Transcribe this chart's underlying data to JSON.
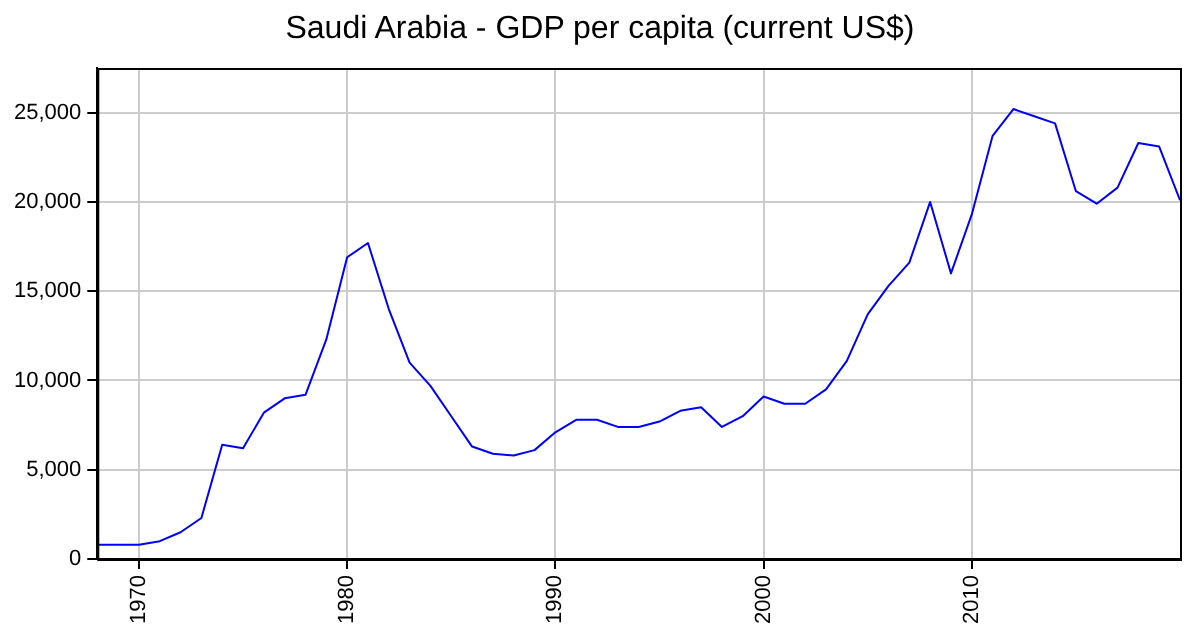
{
  "chart_data": {
    "type": "line",
    "title": "Saudi Arabia - GDP per capita (current US$)",
    "x": [
      1968,
      1969,
      1970,
      1971,
      1972,
      1973,
      1974,
      1975,
      1976,
      1977,
      1978,
      1979,
      1980,
      1981,
      1982,
      1983,
      1984,
      1985,
      1986,
      1987,
      1988,
      1989,
      1990,
      1991,
      1992,
      1993,
      1994,
      1995,
      1996,
      1997,
      1998,
      1999,
      2000,
      2001,
      2002,
      2003,
      2004,
      2005,
      2006,
      2007,
      2008,
      2009,
      2010,
      2011,
      2012,
      2013,
      2014,
      2015,
      2016,
      2017,
      2018,
      2019,
      2020
    ],
    "series": [
      {
        "color": "#0000ff",
        "values": [
          800,
          800,
          800,
          1000,
          1500,
          2300,
          6400,
          6200,
          8200,
          9000,
          9200,
          12300,
          16900,
          17700,
          14000,
          11000,
          9700,
          8000,
          6300,
          5900,
          5800,
          6100,
          7100,
          7800,
          7800,
          7400,
          7400,
          7700,
          8300,
          8500,
          7400,
          8000,
          9100,
          8700,
          8700,
          9500,
          11100,
          13700,
          15300,
          16600,
          20000,
          16000,
          19300,
          23700,
          25200,
          24800,
          24400,
          20600,
          19900,
          20800,
          23300,
          23100,
          20100
        ]
      }
    ],
    "xlim": [
      1968,
      2020
    ],
    "xticks": [
      1970,
      1980,
      1990,
      2000,
      2010
    ],
    "ylim": [
      0,
      27500
    ],
    "yticks": [
      0,
      {
        "value": 5000,
        "label": "5,000"
      },
      {
        "value": 10000,
        "label": "10,000"
      },
      {
        "value": 15000,
        "label": "15,000"
      },
      {
        "value": 20000,
        "label": "20,000"
      },
      {
        "value": 25000,
        "label": "25,000"
      }
    ],
    "grid": true,
    "legend": false,
    "marker": "none",
    "line_style": "solid"
  }
}
